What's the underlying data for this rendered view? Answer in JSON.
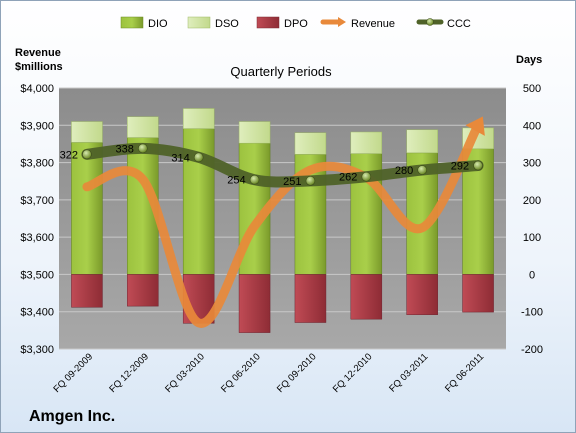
{
  "company": "Amgen Inc.",
  "chart_data": {
    "type": "bar",
    "title": "Quarterly Periods",
    "left_axis": {
      "label_line1": "Revenue",
      "label_line2": "$millions",
      "ylim": [
        3300,
        4000
      ],
      "ticks": [
        "$3,300",
        "$3,400",
        "$3,500",
        "$3,600",
        "$3,700",
        "$3,800",
        "$3,900",
        "$4,000"
      ]
    },
    "right_axis": {
      "label": "Days",
      "ylim": [
        -200,
        500
      ],
      "ticks": [
        "-200",
        "-100",
        "0",
        "100",
        "200",
        "300",
        "400",
        "500"
      ]
    },
    "categories": [
      "FQ 09-2009",
      "FQ 12-2009",
      "FQ 03-2010",
      "FQ 06-2010",
      "FQ 09-2010",
      "FQ 12-2010",
      "FQ 03-2011",
      "FQ 06-2011"
    ],
    "legend": [
      "DIO",
      "DSO",
      "DPO",
      "Revenue",
      "CCC"
    ],
    "series": [
      {
        "name": "DIO",
        "axis": "right",
        "values": [
          354,
          367,
          391,
          352,
          322,
          324,
          326,
          337
        ]
      },
      {
        "name": "DSO",
        "axis": "right",
        "values": [
          56,
          56,
          54,
          58,
          58,
          58,
          62,
          56
        ]
      },
      {
        "name": "DPO",
        "axis": "right",
        "values": [
          -88,
          -85,
          -131,
          -156,
          -129,
          -120,
          -108,
          -101
        ]
      },
      {
        "name": "Revenue",
        "axis": "left",
        "values": [
          3735,
          3755,
          3370,
          3630,
          3780,
          3760,
          3625,
          3900
        ]
      },
      {
        "name": "CCC",
        "axis": "right",
        "values": [
          322,
          338,
          314,
          254,
          251,
          262,
          280,
          292
        ]
      }
    ],
    "ccc_labels": [
      "322",
      "338",
      "314",
      "254",
      "251",
      "262",
      "280",
      "292"
    ],
    "colors": {
      "DIO": "#8fb535",
      "DSO": "#d5e8a8",
      "DPO": "#b0404a",
      "Revenue": "#e8893a",
      "CCC": "#4f6228",
      "plot_bg": "#9a9a9a"
    },
    "grid": true,
    "legend_position": "top"
  }
}
